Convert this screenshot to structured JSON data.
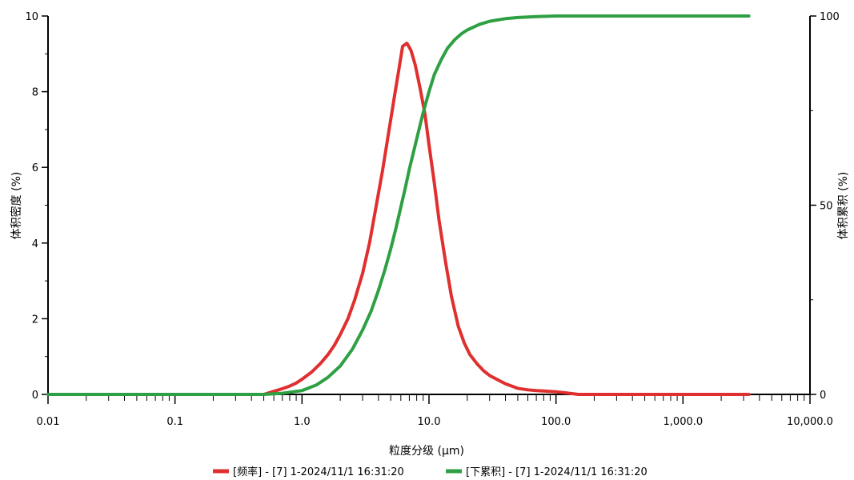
{
  "chart_data": {
    "type": "line",
    "xlabel": "粒度分级 (µm)",
    "ylabel_left": "体积密度 (%)",
    "ylabel_right": "体积累积 (%)",
    "x_scale": "log",
    "xlim": [
      0.01,
      10000
    ],
    "ylim_left": [
      0,
      10
    ],
    "ylim_right": [
      0,
      100
    ],
    "x_ticks": [
      {
        "value": 0.01,
        "label": "0.01"
      },
      {
        "value": 0.1,
        "label": "0.1"
      },
      {
        "value": 1,
        "label": "1.0"
      },
      {
        "value": 10,
        "label": "10.0"
      },
      {
        "value": 100,
        "label": "100.0"
      },
      {
        "value": 1000,
        "label": "1,000.0"
      },
      {
        "value": 10000,
        "label": "10,000.0"
      }
    ],
    "y_left_ticks": [
      {
        "value": 0,
        "label": "0"
      },
      {
        "value": 2,
        "label": "2"
      },
      {
        "value": 4,
        "label": "4"
      },
      {
        "value": 6,
        "label": "6"
      },
      {
        "value": 8,
        "label": "8"
      },
      {
        "value": 10,
        "label": "10"
      }
    ],
    "y_right_ticks": [
      {
        "value": 0,
        "label": "0"
      },
      {
        "value": 50,
        "label": "50"
      },
      {
        "value": 100,
        "label": "100"
      }
    ],
    "grid": false,
    "legend_position": "bottom",
    "series": [
      {
        "name": "[频率] - [7] 1-2024/11/1 16:31:20",
        "axis": "left",
        "color": "#e02f2f",
        "x": [
          0.01,
          0.5,
          0.6,
          0.7,
          0.8,
          0.9,
          1.0,
          1.2,
          1.4,
          1.6,
          1.8,
          2.0,
          2.3,
          2.6,
          3.0,
          3.4,
          3.8,
          4.3,
          4.8,
          5.3,
          5.8,
          6.2,
          6.7,
          7.2,
          7.8,
          8.5,
          9.3,
          10.0,
          11.0,
          12.0,
          13.5,
          15.0,
          17.0,
          19.0,
          21.0,
          24.0,
          27.0,
          30.0,
          35.0,
          40.0,
          50.0,
          60.0,
          70.0,
          80.0,
          100.0,
          120.0,
          150.0,
          200.0,
          500.0,
          1000.0,
          3300.0
        ],
        "y": [
          0,
          0,
          0.08,
          0.15,
          0.22,
          0.3,
          0.4,
          0.6,
          0.82,
          1.05,
          1.3,
          1.58,
          2.0,
          2.5,
          3.2,
          4.0,
          4.9,
          5.9,
          6.9,
          7.8,
          8.6,
          9.2,
          9.28,
          9.1,
          8.7,
          8.1,
          7.4,
          6.6,
          5.6,
          4.6,
          3.5,
          2.6,
          1.8,
          1.35,
          1.05,
          0.8,
          0.62,
          0.5,
          0.38,
          0.28,
          0.16,
          0.12,
          0.1,
          0.09,
          0.07,
          0.04,
          0,
          0,
          0,
          0,
          0
        ]
      },
      {
        "name": "[下累积] - [7] 1-2024/11/1 16:31:20",
        "axis": "right",
        "color": "#2ea043",
        "x": [
          0.01,
          0.5,
          0.7,
          1.0,
          1.3,
          1.6,
          2.0,
          2.5,
          3.0,
          3.5,
          4.0,
          4.5,
          5.0,
          5.5,
          6.0,
          6.5,
          7.0,
          8.0,
          9.0,
          10.0,
          11.0,
          12.5,
          14.0,
          16.0,
          18.0,
          20.0,
          25.0,
          30.0,
          40.0,
          50.0,
          70.0,
          100.0,
          150.0,
          300.0,
          1000.0,
          3300.0
        ],
        "y": [
          0,
          0,
          0.3,
          1.0,
          2.5,
          4.5,
          7.5,
          12.0,
          17.0,
          22.0,
          27.5,
          33.0,
          38.5,
          44.0,
          49.5,
          54.5,
          59.5,
          67.5,
          74.5,
          80.0,
          84.5,
          88.5,
          91.5,
          93.8,
          95.3,
          96.3,
          97.8,
          98.6,
          99.3,
          99.6,
          99.85,
          100,
          100,
          100,
          100,
          100
        ]
      }
    ]
  }
}
